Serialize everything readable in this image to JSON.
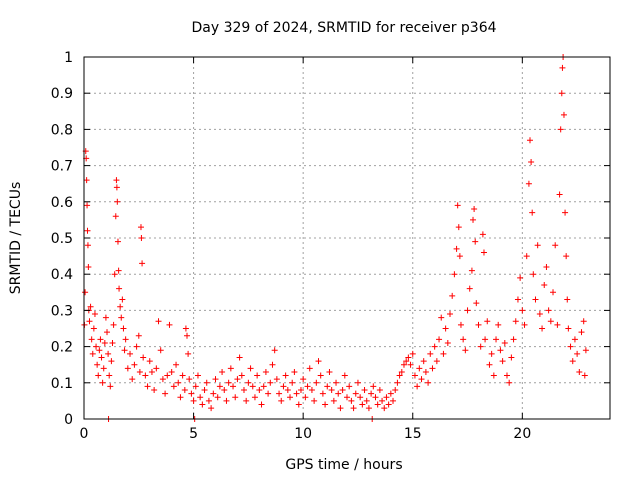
{
  "chart_data": {
    "type": "scatter",
    "title": "Day 329 of 2024, SRMTID for receiver p364",
    "xlabel": "GPS time / hours",
    "ylabel": "SRMTID / TECUs",
    "xlim": [
      0,
      24
    ],
    "ylim": [
      0,
      1
    ],
    "xticks": [
      0,
      5,
      10,
      15,
      20
    ],
    "xtick_labels": [
      "0",
      "5",
      "10",
      "15",
      "20"
    ],
    "yticks": [
      0,
      0.1,
      0.2,
      0.3,
      0.4,
      0.5,
      0.6,
      0.7,
      0.8,
      0.9,
      1
    ],
    "ytick_labels": [
      "0",
      "0.1",
      "0.2",
      "0.3",
      "0.4",
      "0.5",
      "0.6",
      "0.7",
      "0.8",
      "0.9",
      "1"
    ],
    "grid": true,
    "marker": "plus",
    "color": "#ff0000",
    "series": [
      {
        "name": "SRMTID",
        "points": [
          [
            0.02,
            0.26
          ],
          [
            0.05,
            0.35
          ],
          [
            0.08,
            0.74
          ],
          [
            0.1,
            0.72
          ],
          [
            0.12,
            0.66
          ],
          [
            0.14,
            0.59
          ],
          [
            0.16,
            0.52
          ],
          [
            0.18,
            0.48
          ],
          [
            0.2,
            0.42
          ],
          [
            0.22,
            0.3
          ],
          [
            0.25,
            0.27
          ],
          [
            0.3,
            0.31
          ],
          [
            0.35,
            0.22
          ],
          [
            0.4,
            0.18
          ],
          [
            0.45,
            0.25
          ],
          [
            0.5,
            0.29
          ],
          [
            0.55,
            0.2
          ],
          [
            0.6,
            0.15
          ],
          [
            0.65,
            0.12
          ],
          [
            0.7,
            0.19
          ],
          [
            0.75,
            0.22
          ],
          [
            0.8,
            0.17
          ],
          [
            0.85,
            0.1
          ],
          [
            0.9,
            0.14
          ],
          [
            0.95,
            0.21
          ],
          [
            1.0,
            0.28
          ],
          [
            1.05,
            0.24
          ],
          [
            1.1,
            0.18
          ],
          [
            1.12,
            0.0
          ],
          [
            1.15,
            0.12
          ],
          [
            1.2,
            0.09
          ],
          [
            1.25,
            0.16
          ],
          [
            1.3,
            0.21
          ],
          [
            1.35,
            0.26
          ],
          [
            1.4,
            0.4
          ],
          [
            1.45,
            0.56
          ],
          [
            1.48,
            0.66
          ],
          [
            1.5,
            0.64
          ],
          [
            1.52,
            0.6
          ],
          [
            1.55,
            0.49
          ],
          [
            1.58,
            0.41
          ],
          [
            1.6,
            0.36
          ],
          [
            1.65,
            0.31
          ],
          [
            1.7,
            0.28
          ],
          [
            1.75,
            0.33
          ],
          [
            1.8,
            0.25
          ],
          [
            1.85,
            0.19
          ],
          [
            1.9,
            0.22
          ],
          [
            2.0,
            0.14
          ],
          [
            2.1,
            0.18
          ],
          [
            2.2,
            0.11
          ],
          [
            2.3,
            0.15
          ],
          [
            2.4,
            0.2
          ],
          [
            2.5,
            0.23
          ],
          [
            2.55,
            0.13
          ],
          [
            2.6,
            0.53
          ],
          [
            2.62,
            0.5
          ],
          [
            2.65,
            0.43
          ],
          [
            2.7,
            0.17
          ],
          [
            2.8,
            0.12
          ],
          [
            2.9,
            0.09
          ],
          [
            3.0,
            0.16
          ],
          [
            3.1,
            0.13
          ],
          [
            3.2,
            0.08
          ],
          [
            3.3,
            0.14
          ],
          [
            3.4,
            0.27
          ],
          [
            3.5,
            0.19
          ],
          [
            3.6,
            0.11
          ],
          [
            3.7,
            0.07
          ],
          [
            3.8,
            0.12
          ],
          [
            3.9,
            0.26
          ],
          [
            4.0,
            0.13
          ],
          [
            4.1,
            0.09
          ],
          [
            4.2,
            0.15
          ],
          [
            4.3,
            0.1
          ],
          [
            4.4,
            0.06
          ],
          [
            4.5,
            0.12
          ],
          [
            4.6,
            0.08
          ],
          [
            4.65,
            0.25
          ],
          [
            4.7,
            0.23
          ],
          [
            4.75,
            0.18
          ],
          [
            4.8,
            0.11
          ],
          [
            4.9,
            0.07
          ],
          [
            5.0,
            0.05
          ],
          [
            5.05,
            0.0
          ],
          [
            5.1,
            0.09
          ],
          [
            5.2,
            0.12
          ],
          [
            5.3,
            0.06
          ],
          [
            5.4,
            0.04
          ],
          [
            5.5,
            0.08
          ],
          [
            5.6,
            0.1
          ],
          [
            5.7,
            0.05
          ],
          [
            5.8,
            0.03
          ],
          [
            5.9,
            0.07
          ],
          [
            6.0,
            0.11
          ],
          [
            6.1,
            0.06
          ],
          [
            6.2,
            0.09
          ],
          [
            6.3,
            0.13
          ],
          [
            6.4,
            0.08
          ],
          [
            6.5,
            0.05
          ],
          [
            6.6,
            0.1
          ],
          [
            6.7,
            0.14
          ],
          [
            6.8,
            0.09
          ],
          [
            6.9,
            0.06
          ],
          [
            7.0,
            0.11
          ],
          [
            7.1,
            0.17
          ],
          [
            7.2,
            0.12
          ],
          [
            7.3,
            0.08
          ],
          [
            7.4,
            0.05
          ],
          [
            7.5,
            0.1
          ],
          [
            7.6,
            0.14
          ],
          [
            7.7,
            0.09
          ],
          [
            7.8,
            0.06
          ],
          [
            7.9,
            0.12
          ],
          [
            8.0,
            0.08
          ],
          [
            8.1,
            0.04
          ],
          [
            8.2,
            0.09
          ],
          [
            8.3,
            0.13
          ],
          [
            8.4,
            0.07
          ],
          [
            8.5,
            0.1
          ],
          [
            8.6,
            0.15
          ],
          [
            8.7,
            0.19
          ],
          [
            8.8,
            0.11
          ],
          [
            8.9,
            0.07
          ],
          [
            9.0,
            0.05
          ],
          [
            9.1,
            0.09
          ],
          [
            9.2,
            0.12
          ],
          [
            9.3,
            0.08
          ],
          [
            9.4,
            0.06
          ],
          [
            9.5,
            0.1
          ],
          [
            9.6,
            0.13
          ],
          [
            9.7,
            0.07
          ],
          [
            9.8,
            0.04
          ],
          [
            9.9,
            0.08
          ],
          [
            10.0,
            0.11
          ],
          [
            10.1,
            0.06
          ],
          [
            10.2,
            0.09
          ],
          [
            10.3,
            0.14
          ],
          [
            10.4,
            0.08
          ],
          [
            10.5,
            0.05
          ],
          [
            10.6,
            0.1
          ],
          [
            10.7,
            0.16
          ],
          [
            10.8,
            0.12
          ],
          [
            10.9,
            0.07
          ],
          [
            11.0,
            0.04
          ],
          [
            11.1,
            0.09
          ],
          [
            11.2,
            0.13
          ],
          [
            11.3,
            0.08
          ],
          [
            11.4,
            0.05
          ],
          [
            11.5,
            0.1
          ],
          [
            11.6,
            0.07
          ],
          [
            11.7,
            0.03
          ],
          [
            11.8,
            0.08
          ],
          [
            11.9,
            0.12
          ],
          [
            12.0,
            0.06
          ],
          [
            12.1,
            0.09
          ],
          [
            12.2,
            0.05
          ],
          [
            12.3,
            0.03
          ],
          [
            12.4,
            0.07
          ],
          [
            12.5,
            0.1
          ],
          [
            12.6,
            0.06
          ],
          [
            12.7,
            0.04
          ],
          [
            12.8,
            0.08
          ],
          [
            12.9,
            0.05
          ],
          [
            13.0,
            0.03
          ],
          [
            13.1,
            0.07
          ],
          [
            13.15,
            0.0
          ],
          [
            13.2,
            0.09
          ],
          [
            13.3,
            0.06
          ],
          [
            13.4,
            0.04
          ],
          [
            13.5,
            0.08
          ],
          [
            13.6,
            0.05
          ],
          [
            13.7,
            0.03
          ],
          [
            13.8,
            0.06
          ],
          [
            13.9,
            0.04
          ],
          [
            14.0,
            0.07
          ],
          [
            14.1,
            0.05
          ],
          [
            14.2,
            0.08
          ],
          [
            14.3,
            0.1
          ],
          [
            14.4,
            0.12
          ],
          [
            14.5,
            0.13
          ],
          [
            14.6,
            0.15
          ],
          [
            14.7,
            0.16
          ],
          [
            14.8,
            0.17
          ],
          [
            14.9,
            0.15
          ],
          [
            15.0,
            0.18
          ],
          [
            15.1,
            0.12
          ],
          [
            15.2,
            0.09
          ],
          [
            15.3,
            0.14
          ],
          [
            15.4,
            0.11
          ],
          [
            15.5,
            0.16
          ],
          [
            15.6,
            0.13
          ],
          [
            15.7,
            0.1
          ],
          [
            15.8,
            0.18
          ],
          [
            15.9,
            0.14
          ],
          [
            16.0,
            0.2
          ],
          [
            16.1,
            0.16
          ],
          [
            16.2,
            0.22
          ],
          [
            16.3,
            0.28
          ],
          [
            16.4,
            0.18
          ],
          [
            16.5,
            0.25
          ],
          [
            16.6,
            0.21
          ],
          [
            16.7,
            0.29
          ],
          [
            16.8,
            0.34
          ],
          [
            16.9,
            0.4
          ],
          [
            17.0,
            0.47
          ],
          [
            17.05,
            0.59
          ],
          [
            17.1,
            0.53
          ],
          [
            17.15,
            0.45
          ],
          [
            17.2,
            0.26
          ],
          [
            17.3,
            0.22
          ],
          [
            17.4,
            0.19
          ],
          [
            17.5,
            0.3
          ],
          [
            17.6,
            0.36
          ],
          [
            17.7,
            0.41
          ],
          [
            17.75,
            0.55
          ],
          [
            17.8,
            0.58
          ],
          [
            17.85,
            0.49
          ],
          [
            17.9,
            0.32
          ],
          [
            18.0,
            0.26
          ],
          [
            18.1,
            0.2
          ],
          [
            18.2,
            0.51
          ],
          [
            18.25,
            0.46
          ],
          [
            18.3,
            0.22
          ],
          [
            18.4,
            0.27
          ],
          [
            18.5,
            0.15
          ],
          [
            18.6,
            0.18
          ],
          [
            18.7,
            0.12
          ],
          [
            18.8,
            0.22
          ],
          [
            18.9,
            0.26
          ],
          [
            19.0,
            0.19
          ],
          [
            19.1,
            0.16
          ],
          [
            19.2,
            0.21
          ],
          [
            19.3,
            0.12
          ],
          [
            19.4,
            0.1
          ],
          [
            19.5,
            0.17
          ],
          [
            19.6,
            0.22
          ],
          [
            19.7,
            0.27
          ],
          [
            19.8,
            0.33
          ],
          [
            19.9,
            0.39
          ],
          [
            20.0,
            0.3
          ],
          [
            20.1,
            0.26
          ],
          [
            20.2,
            0.45
          ],
          [
            20.3,
            0.65
          ],
          [
            20.35,
            0.77
          ],
          [
            20.4,
            0.71
          ],
          [
            20.45,
            0.57
          ],
          [
            20.5,
            0.4
          ],
          [
            20.6,
            0.33
          ],
          [
            20.7,
            0.48
          ],
          [
            20.8,
            0.29
          ],
          [
            20.9,
            0.25
          ],
          [
            21.0,
            0.37
          ],
          [
            21.1,
            0.42
          ],
          [
            21.2,
            0.3
          ],
          [
            21.3,
            0.27
          ],
          [
            21.4,
            0.35
          ],
          [
            21.5,
            0.48
          ],
          [
            21.6,
            0.26
          ],
          [
            21.7,
            0.62
          ],
          [
            21.75,
            0.8
          ],
          [
            21.8,
            0.9
          ],
          [
            21.83,
            0.97
          ],
          [
            21.86,
            1.0
          ],
          [
            21.9,
            0.84
          ],
          [
            21.95,
            0.57
          ],
          [
            22.0,
            0.45
          ],
          [
            22.05,
            0.33
          ],
          [
            22.1,
            0.25
          ],
          [
            22.2,
            0.2
          ],
          [
            22.3,
            0.16
          ],
          [
            22.4,
            0.22
          ],
          [
            22.5,
            0.18
          ],
          [
            22.6,
            0.13
          ],
          [
            22.7,
            0.24
          ],
          [
            22.8,
            0.27
          ],
          [
            22.85,
            0.12
          ],
          [
            22.9,
            0.19
          ]
        ]
      }
    ]
  }
}
